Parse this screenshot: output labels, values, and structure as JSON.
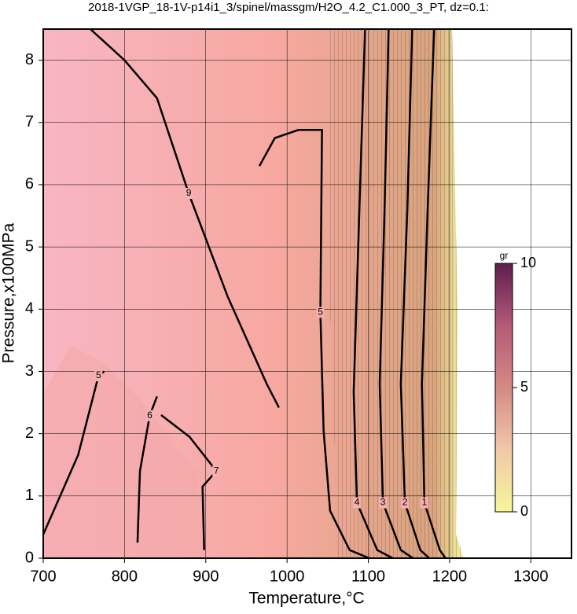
{
  "chart_data": {
    "type": "contour",
    "title": "2018-1VGP_18-1V-p14i1_3/spinel/massgm/H2O_4.2_C1.000_3_PT, dz=0.1:",
    "x_label": "Temperature,°C",
    "y_label": "Pressure,x100MPa",
    "xlim": [
      700,
      1350
    ],
    "ylim": [
      0,
      8.5
    ],
    "xticks": [
      700,
      800,
      900,
      1000,
      1100,
      1200,
      1300
    ],
    "yticks": [
      0,
      1,
      2,
      3,
      4,
      5,
      6,
      7,
      8
    ],
    "grid": true,
    "line_color": "#000000",
    "contours": [
      {
        "level": 9,
        "t": [
          758,
          800,
          840,
          879,
          927,
          975,
          990
        ],
        "p": [
          8.5,
          8.0,
          7.39,
          5.86,
          4.2,
          2.8,
          2.42
        ]
      },
      {
        "level": 5,
        "t": [
          966,
          985,
          1014,
          1043,
          1041,
          1045,
          1053,
          1077,
          1101
        ],
        "p": [
          6.3,
          6.75,
          6.88,
          6.88,
          3.95,
          2.04,
          0.76,
          0.13,
          0
        ]
      },
      {
        "level": 4,
        "t": [
          1096,
          1089,
          1082,
          1086,
          1111,
          1130
        ],
        "p": [
          8.5,
          5.6,
          2.67,
          0.89,
          0.13,
          0
        ]
      },
      {
        "level": 3,
        "t": [
          1125,
          1120,
          1114,
          1118,
          1140,
          1155
        ],
        "p": [
          8.5,
          5.6,
          2.8,
          0.89,
          0.13,
          0
        ]
      },
      {
        "level": 2,
        "t": [
          1154,
          1148,
          1140,
          1145,
          1164,
          1175
        ],
        "p": [
          8.5,
          5.6,
          2.8,
          0.89,
          0.13,
          0
        ]
      },
      {
        "level": 1,
        "t": [
          1181,
          1173,
          1166,
          1169,
          1188,
          1195
        ],
        "p": [
          8.5,
          5.6,
          2.8,
          0.89,
          0.13,
          0
        ]
      },
      {
        "level": 5,
        "t": [
          700,
          743,
          768,
          775
        ],
        "p": [
          0.38,
          1.66,
          2.93,
          3.0
        ]
      },
      {
        "level": 6,
        "t": [
          816,
          819,
          831,
          840
        ],
        "p": [
          0.25,
          1.4,
          2.29,
          2.6
        ]
      },
      {
        "level": 7,
        "t": [
          898,
          896,
          913,
          880,
          845
        ],
        "p": [
          0.13,
          1.15,
          1.4,
          1.95,
          2.3
        ]
      }
    ],
    "colorbar": {
      "label": "gr",
      "lim": [
        0,
        10
      ],
      "ticks": [
        0,
        5,
        10
      ],
      "colors": [
        "#f6f69a",
        "#f2c8a8",
        "#d48a84",
        "#b45a78",
        "#5e1d4e"
      ]
    }
  }
}
